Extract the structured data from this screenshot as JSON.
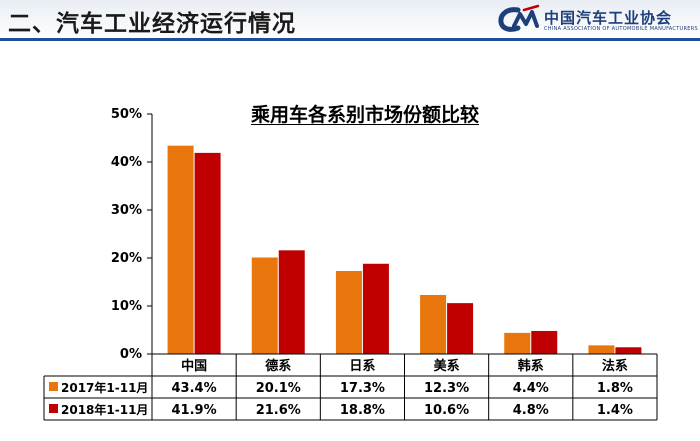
{
  "header": {
    "title": "二、汽车工业经济运行情况",
    "logo_name": "中国汽车工业协会",
    "logo_subtitle": "CHINA ASSOCIATION OF AUTOMOBILE MANUFACTURERS"
  },
  "colors": {
    "series_2017": "#e8760c",
    "series_2018": "#c00000",
    "header_rule": "#1f4e9a"
  },
  "chart_data": {
    "type": "bar",
    "title": "乘用车各系别市场份额比较",
    "categories": [
      "中国",
      "德系",
      "日系",
      "美系",
      "韩系",
      "法系"
    ],
    "y_ticks": [
      "0%",
      "10%",
      "20%",
      "30%",
      "40%",
      "50%"
    ],
    "ylim": [
      0,
      50
    ],
    "series": [
      {
        "name": "2017年1-11月",
        "values": [
          43.4,
          20.1,
          17.3,
          12.3,
          4.4,
          1.8
        ],
        "labels": [
          "43.4%",
          "20.1%",
          "17.3%",
          "12.3%",
          "4.4%",
          "1.8%"
        ]
      },
      {
        "name": "2018年1-11月",
        "values": [
          41.9,
          21.6,
          18.8,
          10.6,
          4.8,
          1.4
        ],
        "labels": [
          "41.9%",
          "21.6%",
          "18.8%",
          "10.6%",
          "4.8%",
          "1.4%"
        ]
      }
    ],
    "grid": false,
    "legend": "in data table"
  }
}
